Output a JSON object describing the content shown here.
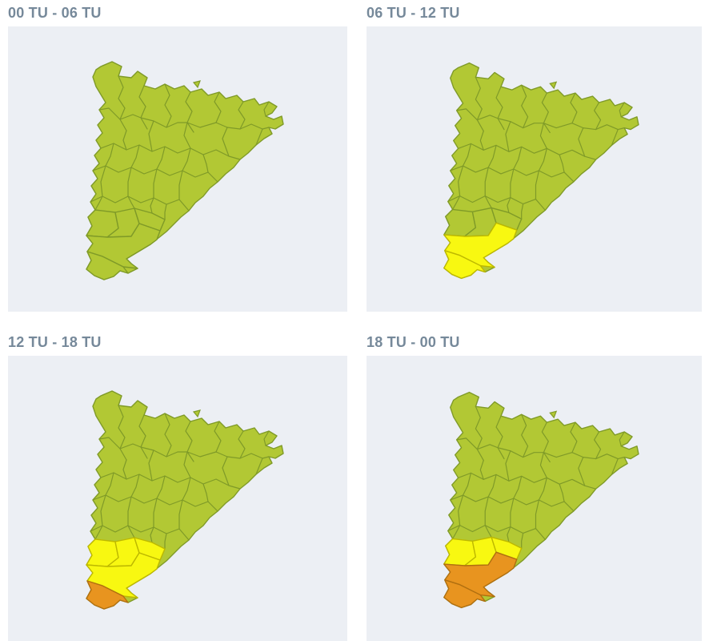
{
  "panels": [
    {
      "title": "00 TU - 06 TU",
      "alerts": {}
    },
    {
      "title": "06 TU - 12 TU",
      "alerts": {
        "baix-ebre": "yellow",
        "montsia": "yellow"
      }
    },
    {
      "title": "12 TU - 18 TU",
      "alerts": {
        "terra-alta": "yellow",
        "ribera-ebre": "yellow",
        "priorat": "yellow",
        "baix-ebre": "yellow",
        "montsia": "orange"
      }
    },
    {
      "title": "18 TU - 00 TU",
      "alerts": {
        "terra-alta": "yellow",
        "ribera-ebre": "yellow",
        "priorat": "yellow",
        "baix-ebre": "orange",
        "montsia": "orange"
      }
    }
  ],
  "colors": {
    "panel_background": "#eceff4",
    "title_text": "#76899a",
    "no_alert_fill": "#b2c834",
    "no_alert_border": "#7f9a28",
    "yellow_alert_fill": "#f8f811",
    "yellow_alert_border": "#bdb800",
    "orange_alert_fill": "#e8941f",
    "orange_alert_border": "#b06f10"
  }
}
